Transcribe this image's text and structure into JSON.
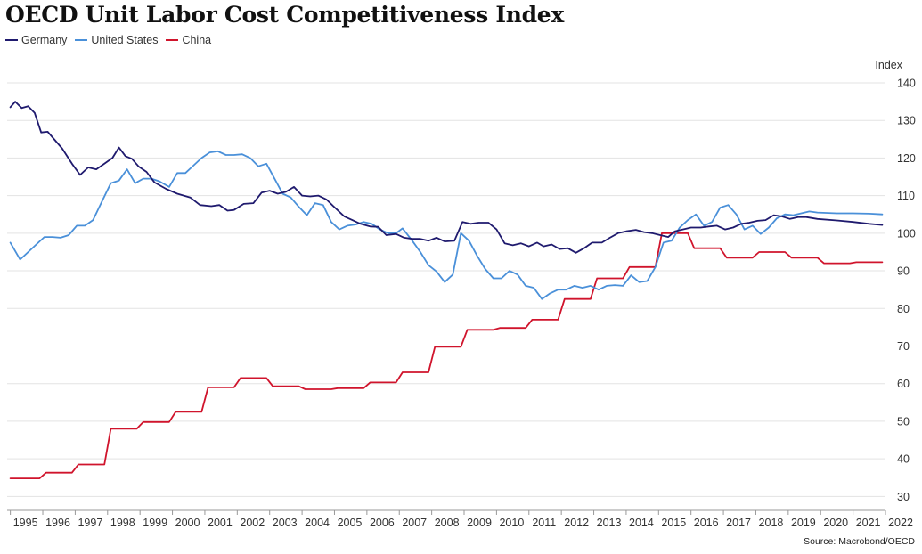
{
  "chart_data": {
    "type": "line",
    "title": "OECD Unit Labor Cost Competitiveness Index",
    "ylabel": "Index",
    "source": "Source: Macrobond/OECD",
    "xlim": [
      1994.9,
      2022.0
    ],
    "ylim": [
      27,
      140
    ],
    "yticks": [
      30,
      40,
      50,
      60,
      70,
      80,
      90,
      100,
      110,
      120,
      130,
      140
    ],
    "xticks": [
      "1995",
      "1996",
      "1997",
      "1998",
      "1999",
      "2000",
      "2001",
      "2002",
      "2003",
      "2004",
      "2005",
      "2006",
      "2007",
      "2008",
      "2009",
      "2010",
      "2011",
      "2012",
      "2013",
      "2014",
      "2015",
      "2016",
      "2017",
      "2018",
      "2019",
      "2020",
      "2021",
      "2022"
    ],
    "grid": true,
    "legend_position": "top-left",
    "series": [
      {
        "name": "Germany",
        "color": "#1f1a6e",
        "points": [
          [
            1995.0,
            133.5
          ],
          [
            1995.15,
            135.0
          ],
          [
            1995.35,
            133.3
          ],
          [
            1995.55,
            133.8
          ],
          [
            1995.75,
            132.0
          ],
          [
            1995.95,
            126.8
          ],
          [
            1996.15,
            127.0
          ],
          [
            1996.6,
            122.5
          ],
          [
            1996.9,
            118.5
          ],
          [
            1997.15,
            115.5
          ],
          [
            1997.4,
            117.5
          ],
          [
            1997.65,
            117.0
          ],
          [
            1997.9,
            118.5
          ],
          [
            1998.15,
            120.0
          ],
          [
            1998.35,
            122.8
          ],
          [
            1998.55,
            120.5
          ],
          [
            1998.75,
            119.8
          ],
          [
            1998.95,
            117.8
          ],
          [
            1999.2,
            116.3
          ],
          [
            1999.45,
            113.5
          ],
          [
            1999.8,
            111.8
          ],
          [
            2000.15,
            110.5
          ],
          [
            2000.55,
            109.5
          ],
          [
            2000.85,
            107.5
          ],
          [
            2001.2,
            107.2
          ],
          [
            2001.45,
            107.5
          ],
          [
            2001.7,
            106.0
          ],
          [
            2001.9,
            106.2
          ],
          [
            2002.2,
            107.8
          ],
          [
            2002.5,
            108.0
          ],
          [
            2002.75,
            110.8
          ],
          [
            2003.0,
            111.3
          ],
          [
            2003.25,
            110.5
          ],
          [
            2003.5,
            111.0
          ],
          [
            2003.75,
            112.3
          ],
          [
            2004.0,
            110.0
          ],
          [
            2004.25,
            109.8
          ],
          [
            2004.5,
            110.0
          ],
          [
            2004.75,
            109.0
          ],
          [
            2004.95,
            107.3
          ],
          [
            2005.3,
            104.5
          ],
          [
            2005.55,
            103.5
          ],
          [
            2005.8,
            102.5
          ],
          [
            2006.1,
            101.8
          ],
          [
            2006.35,
            101.7
          ],
          [
            2006.6,
            99.5
          ],
          [
            2006.9,
            99.8
          ],
          [
            2007.15,
            98.8
          ],
          [
            2007.4,
            98.5
          ],
          [
            2007.65,
            98.5
          ],
          [
            2007.9,
            98.0
          ],
          [
            2008.15,
            98.8
          ],
          [
            2008.4,
            97.8
          ],
          [
            2008.7,
            98.0
          ],
          [
            2008.95,
            103.0
          ],
          [
            2009.2,
            102.5
          ],
          [
            2009.45,
            102.8
          ],
          [
            2009.75,
            102.8
          ],
          [
            2010.0,
            101.0
          ],
          [
            2010.25,
            97.3
          ],
          [
            2010.5,
            96.8
          ],
          [
            2010.75,
            97.3
          ],
          [
            2011.0,
            96.5
          ],
          [
            2011.25,
            97.5
          ],
          [
            2011.45,
            96.5
          ],
          [
            2011.7,
            97.0
          ],
          [
            2011.95,
            95.8
          ],
          [
            2012.2,
            96.0
          ],
          [
            2012.45,
            94.8
          ],
          [
            2012.7,
            96.0
          ],
          [
            2012.95,
            97.5
          ],
          [
            2013.25,
            97.5
          ],
          [
            2013.5,
            98.8
          ],
          [
            2013.75,
            100.0
          ],
          [
            2014.0,
            100.5
          ],
          [
            2014.3,
            100.9
          ],
          [
            2014.55,
            100.3
          ],
          [
            2014.8,
            100.0
          ],
          [
            2015.05,
            99.5
          ],
          [
            2015.3,
            99.0
          ],
          [
            2015.5,
            100.5
          ],
          [
            2015.75,
            101.0
          ],
          [
            2016.0,
            101.5
          ],
          [
            2016.3,
            101.5
          ],
          [
            2016.55,
            101.8
          ],
          [
            2016.8,
            102.0
          ],
          [
            2017.05,
            101.0
          ],
          [
            2017.3,
            101.5
          ],
          [
            2017.55,
            102.5
          ],
          [
            2017.8,
            102.8
          ],
          [
            2018.05,
            103.3
          ],
          [
            2018.3,
            103.5
          ],
          [
            2018.55,
            104.8
          ],
          [
            2018.8,
            104.5
          ],
          [
            2019.05,
            103.8
          ],
          [
            2019.3,
            104.3
          ],
          [
            2019.55,
            104.3
          ],
          [
            2019.9,
            103.8
          ],
          [
            2020.5,
            103.4
          ],
          [
            2021.0,
            103.0
          ],
          [
            2021.5,
            102.5
          ],
          [
            2021.9,
            102.2
          ]
        ]
      },
      {
        "name": "United States",
        "color": "#4a90d9",
        "points": [
          [
            1995.0,
            97.5
          ],
          [
            1995.3,
            93.0
          ],
          [
            1995.55,
            95.0
          ],
          [
            1995.8,
            97.0
          ],
          [
            1996.05,
            99.0
          ],
          [
            1996.3,
            99.0
          ],
          [
            1996.55,
            98.8
          ],
          [
            1996.8,
            99.5
          ],
          [
            1997.05,
            102.0
          ],
          [
            1997.3,
            102.0
          ],
          [
            1997.55,
            103.5
          ],
          [
            1997.8,
            108.0
          ],
          [
            1998.1,
            113.3
          ],
          [
            1998.35,
            114.0
          ],
          [
            1998.6,
            117.0
          ],
          [
            1998.85,
            113.3
          ],
          [
            1999.1,
            114.5
          ],
          [
            1999.35,
            114.5
          ],
          [
            1999.6,
            113.8
          ],
          [
            1999.9,
            112.3
          ],
          [
            2000.15,
            116.0
          ],
          [
            2000.4,
            116.0
          ],
          [
            2000.65,
            118.0
          ],
          [
            2000.9,
            120.0
          ],
          [
            2001.15,
            121.5
          ],
          [
            2001.4,
            121.8
          ],
          [
            2001.65,
            120.8
          ],
          [
            2001.9,
            120.8
          ],
          [
            2002.15,
            121.0
          ],
          [
            2002.4,
            120.0
          ],
          [
            2002.65,
            117.8
          ],
          [
            2002.9,
            118.5
          ],
          [
            2003.15,
            114.5
          ],
          [
            2003.4,
            110.5
          ],
          [
            2003.65,
            109.5
          ],
          [
            2003.9,
            107.0
          ],
          [
            2004.15,
            104.8
          ],
          [
            2004.4,
            108.0
          ],
          [
            2004.65,
            107.5
          ],
          [
            2004.9,
            103.0
          ],
          [
            2005.15,
            101.0
          ],
          [
            2005.4,
            102.0
          ],
          [
            2005.65,
            102.3
          ],
          [
            2005.9,
            103.0
          ],
          [
            2006.15,
            102.5
          ],
          [
            2006.4,
            101.0
          ],
          [
            2006.65,
            100.0
          ],
          [
            2006.9,
            100.0
          ],
          [
            2007.1,
            101.3
          ],
          [
            2007.4,
            98.0
          ],
          [
            2007.65,
            95.0
          ],
          [
            2007.9,
            91.5
          ],
          [
            2008.15,
            89.8
          ],
          [
            2008.4,
            87.0
          ],
          [
            2008.65,
            89.0
          ],
          [
            2008.9,
            100.0
          ],
          [
            2009.15,
            98.0
          ],
          [
            2009.4,
            94.0
          ],
          [
            2009.65,
            90.5
          ],
          [
            2009.9,
            88.0
          ],
          [
            2010.15,
            88.0
          ],
          [
            2010.4,
            90.0
          ],
          [
            2010.65,
            89.0
          ],
          [
            2010.9,
            86.0
          ],
          [
            2011.15,
            85.5
          ],
          [
            2011.4,
            82.5
          ],
          [
            2011.65,
            84.0
          ],
          [
            2011.9,
            85.0
          ],
          [
            2012.15,
            85.0
          ],
          [
            2012.4,
            86.0
          ],
          [
            2012.65,
            85.5
          ],
          [
            2012.9,
            86.0
          ],
          [
            2013.15,
            85.0
          ],
          [
            2013.4,
            86.0
          ],
          [
            2013.65,
            86.2
          ],
          [
            2013.9,
            86.0
          ],
          [
            2014.15,
            88.8
          ],
          [
            2014.4,
            87.0
          ],
          [
            2014.65,
            87.3
          ],
          [
            2014.9,
            91.0
          ],
          [
            2015.15,
            97.5
          ],
          [
            2015.4,
            98.0
          ],
          [
            2015.65,
            101.5
          ],
          [
            2015.9,
            103.5
          ],
          [
            2016.15,
            105.0
          ],
          [
            2016.4,
            102.0
          ],
          [
            2016.65,
            103.0
          ],
          [
            2016.9,
            106.8
          ],
          [
            2017.15,
            107.5
          ],
          [
            2017.4,
            105.0
          ],
          [
            2017.65,
            101.0
          ],
          [
            2017.9,
            102.0
          ],
          [
            2018.15,
            99.8
          ],
          [
            2018.4,
            101.5
          ],
          [
            2018.65,
            104.0
          ],
          [
            2018.9,
            105.0
          ],
          [
            2019.15,
            104.8
          ],
          [
            2019.4,
            105.3
          ],
          [
            2019.65,
            105.8
          ],
          [
            2019.9,
            105.5
          ],
          [
            2020.5,
            105.3
          ],
          [
            2021.0,
            105.3
          ],
          [
            2021.5,
            105.2
          ],
          [
            2021.9,
            105.0
          ]
        ]
      },
      {
        "name": "China",
        "color": "#d0142c",
        "points": [
          [
            1995.0,
            34.8
          ],
          [
            1995.9,
            34.8
          ],
          [
            1996.1,
            36.3
          ],
          [
            1996.9,
            36.3
          ],
          [
            1997.1,
            38.5
          ],
          [
            1997.9,
            38.5
          ],
          [
            1998.1,
            48.0
          ],
          [
            1998.9,
            48.0
          ],
          [
            1999.1,
            49.8
          ],
          [
            1999.9,
            49.8
          ],
          [
            2000.1,
            52.5
          ],
          [
            2000.9,
            52.5
          ],
          [
            2001.1,
            59.0
          ],
          [
            2001.9,
            59.0
          ],
          [
            2002.1,
            61.5
          ],
          [
            2002.9,
            61.5
          ],
          [
            2003.1,
            59.3
          ],
          [
            2003.9,
            59.3
          ],
          [
            2004.1,
            58.5
          ],
          [
            2004.9,
            58.5
          ],
          [
            2005.1,
            58.8
          ],
          [
            2005.9,
            58.8
          ],
          [
            2006.1,
            60.3
          ],
          [
            2006.9,
            60.3
          ],
          [
            2007.1,
            63.0
          ],
          [
            2007.9,
            63.0
          ],
          [
            2008.1,
            69.8
          ],
          [
            2008.9,
            69.8
          ],
          [
            2009.1,
            74.3
          ],
          [
            2009.9,
            74.3
          ],
          [
            2010.1,
            74.8
          ],
          [
            2010.9,
            74.8
          ],
          [
            2011.1,
            77.0
          ],
          [
            2011.9,
            77.0
          ],
          [
            2012.1,
            82.5
          ],
          [
            2012.9,
            82.5
          ],
          [
            2013.1,
            88.0
          ],
          [
            2013.9,
            88.0
          ],
          [
            2014.1,
            91.0
          ],
          [
            2014.9,
            91.0
          ],
          [
            2015.1,
            100.0
          ],
          [
            2015.9,
            100.0
          ],
          [
            2016.1,
            96.0
          ],
          [
            2016.9,
            96.0
          ],
          [
            2017.1,
            93.5
          ],
          [
            2017.9,
            93.5
          ],
          [
            2018.1,
            95.0
          ],
          [
            2018.9,
            95.0
          ],
          [
            2019.1,
            93.5
          ],
          [
            2019.9,
            93.5
          ],
          [
            2020.1,
            92.0
          ],
          [
            2020.9,
            92.0
          ],
          [
            2021.1,
            92.3
          ],
          [
            2021.9,
            92.3
          ]
        ]
      }
    ]
  }
}
